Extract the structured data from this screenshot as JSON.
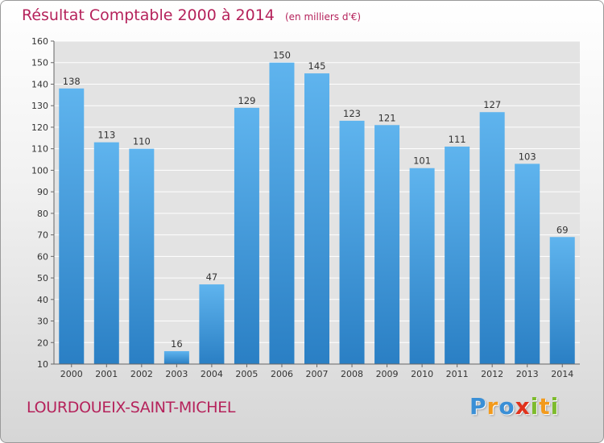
{
  "header": {
    "title": "Résultat Comptable 2000 à 2014",
    "unit": "(en milliers d'€)"
  },
  "footer": {
    "city": "LOURDOUEIX-SAINT-MICHEL",
    "brand_letters": [
      {
        "char": "P",
        "color": "#3a8fd6"
      },
      {
        "char": "r",
        "color": "#f29a1c"
      },
      {
        "char": "o",
        "color": "#3a8fd6"
      },
      {
        "char": "x",
        "color": "#e0321c"
      },
      {
        "char": "i",
        "color": "#7dbb2c"
      },
      {
        "char": "t",
        "color": "#f29a1c"
      },
      {
        "char": "i",
        "color": "#7dbb2c"
      }
    ]
  },
  "colors": {
    "accent": "#b5225b",
    "bar_light": "#5fb4ee",
    "bar_dark": "#2a7fc4",
    "grid": "#ffffff"
  },
  "chart_data": {
    "type": "bar",
    "title": "Résultat Comptable 2000 à 2014",
    "xlabel": "",
    "ylabel": "",
    "categories": [
      "2000",
      "2001",
      "2002",
      "2003",
      "2004",
      "2005",
      "2006",
      "2007",
      "2008",
      "2009",
      "2010",
      "2011",
      "2012",
      "2013",
      "2014"
    ],
    "values": [
      138,
      113,
      110,
      16,
      47,
      129,
      150,
      145,
      123,
      121,
      101,
      111,
      127,
      103,
      69
    ],
    "ylim": [
      10,
      160
    ],
    "yticks": [
      10,
      20,
      30,
      40,
      50,
      60,
      70,
      80,
      90,
      100,
      110,
      120,
      130,
      140,
      150,
      160
    ],
    "grid": true,
    "data_labels": true
  }
}
